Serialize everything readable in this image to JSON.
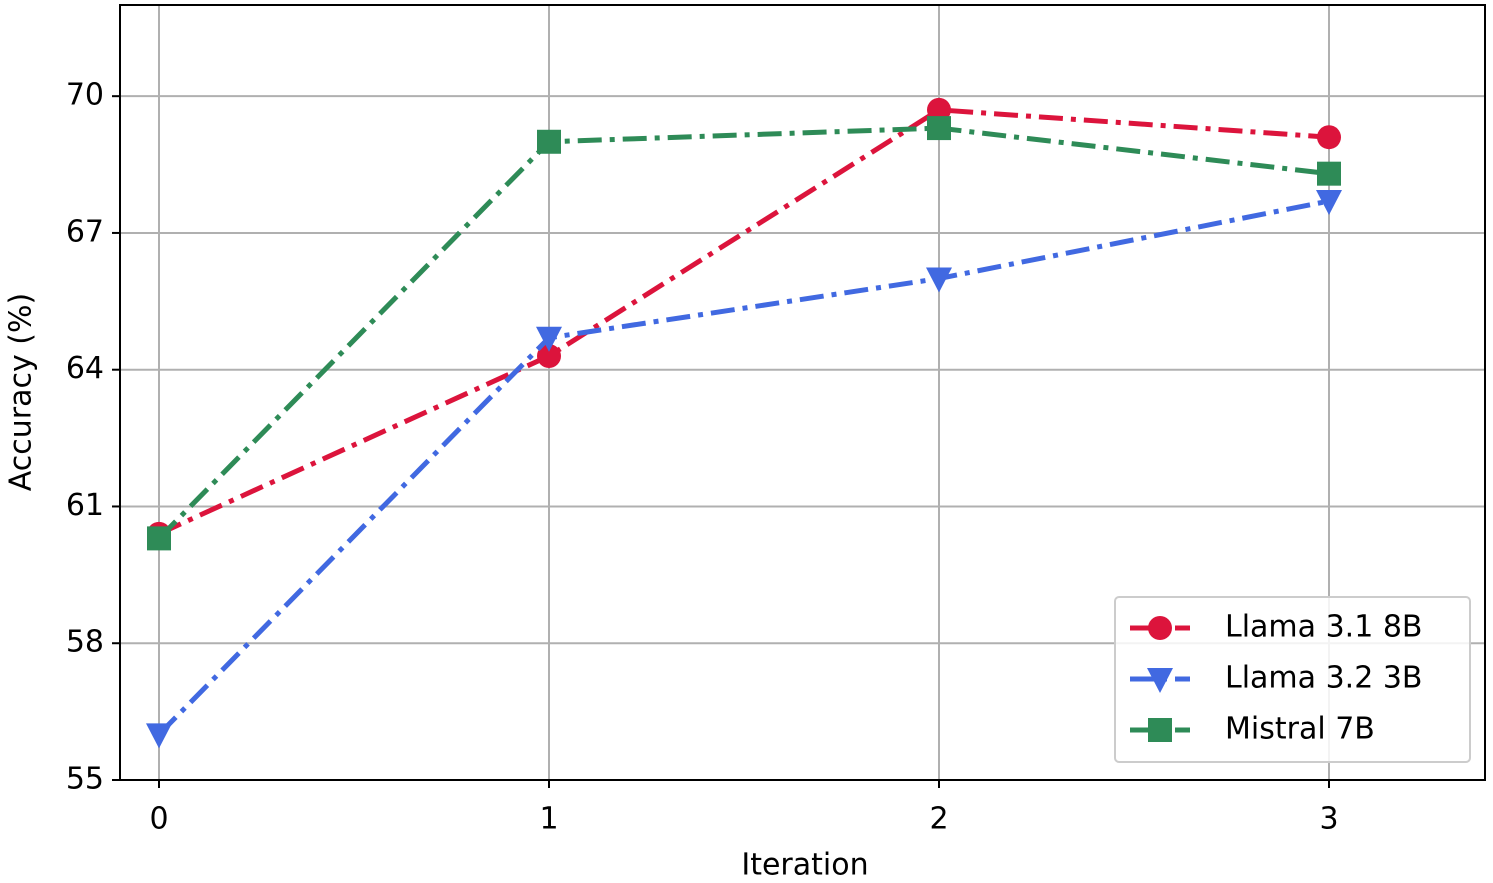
{
  "chart_data": {
    "type": "line",
    "xlabel": "Iteration",
    "ylabel": "Accuracy (%)",
    "x": [
      0,
      1,
      2,
      3
    ],
    "series": [
      {
        "name": "Llama 3.1 8B",
        "color": "#dc143c",
        "marker": "circle",
        "values": [
          60.4,
          64.3,
          69.7,
          69.1
        ]
      },
      {
        "name": "Llama 3.2 3B",
        "color": "#4169e1",
        "marker": "triangle-down",
        "values": [
          56.0,
          64.7,
          66.0,
          67.7
        ]
      },
      {
        "name": "Mistral 7B",
        "color": "#2e8b57",
        "marker": "square",
        "values": [
          60.3,
          69.0,
          69.3,
          68.3
        ]
      }
    ],
    "xlim": [
      -0.1,
      3.4
    ],
    "xticks": [
      0,
      1,
      2,
      3
    ],
    "ylim": [
      55,
      72
    ],
    "yticks": [
      55,
      58,
      61,
      64,
      67,
      70
    ],
    "grid": true,
    "legend": "lower right",
    "line_style": "dash-dot"
  }
}
